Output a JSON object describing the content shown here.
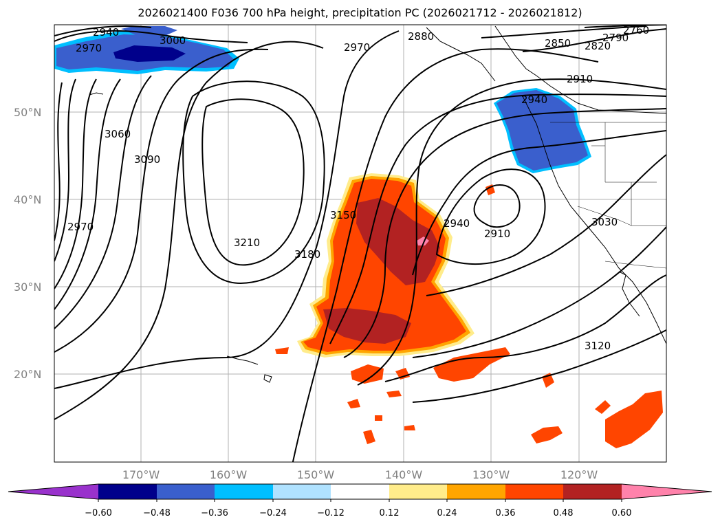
{
  "title": "2026021400 F036 700 hPa height, precipitation PC (2026021712 - 2026021812)",
  "map": {
    "longitude_labels": [
      "170°W",
      "160°W",
      "150°W",
      "140°W",
      "130°W",
      "120°W"
    ],
    "latitude_labels": [
      "50°N",
      "40°N",
      "30°N",
      "20°N"
    ],
    "longitude_values": [
      -170,
      -160,
      -150,
      -140,
      -130,
      -120
    ],
    "latitude_values": [
      50,
      40,
      30,
      20
    ],
    "grid": true
  },
  "contour_labels": [
    "2940",
    "2970",
    "3000",
    "2970",
    "2880",
    "2850",
    "2820",
    "2790",
    "2760",
    "2910",
    "2940",
    "3060",
    "3090",
    "2970",
    "3150",
    "2940",
    "2910",
    "3210",
    "3180",
    "3030",
    "3120"
  ],
  "colorbar": {
    "ticks": [
      "−0.60",
      "−0.48",
      "−0.36",
      "−0.24",
      "−0.12",
      "0.12",
      "0.24",
      "0.36",
      "0.48",
      "0.60"
    ],
    "colors": [
      "#9932cc",
      "#00008b",
      "#3a5fcd",
      "#00bfff",
      "#b0e2ff",
      "#ffffff",
      "#ffec8b",
      "#ffa500",
      "#ff4500",
      "#b22222",
      "#ff82ab"
    ]
  }
}
